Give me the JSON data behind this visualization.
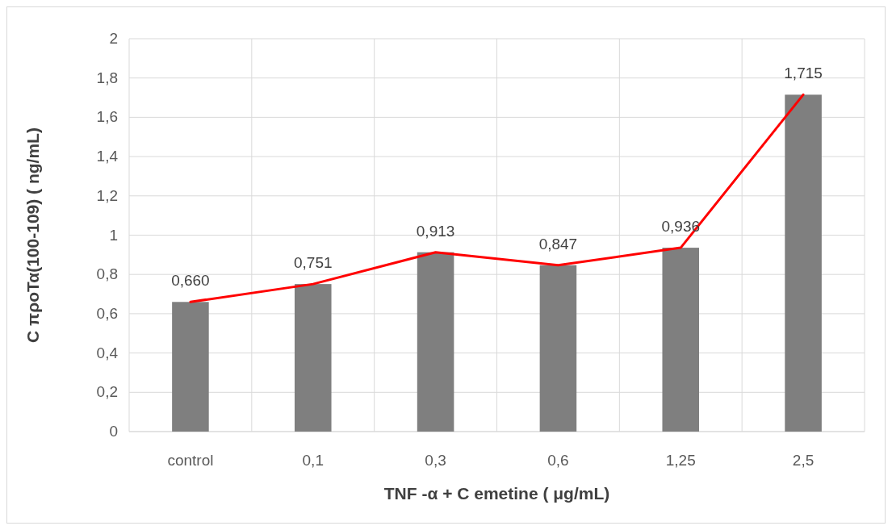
{
  "chart_data": {
    "type": "bar",
    "xlabel": "TNF -α + C emetine ( μg/mL)",
    "ylabel": "C προΤα(100-109) ( ng/mL)",
    "categories": [
      "control",
      "0,1",
      "0,3",
      "0,6",
      "1,25",
      "2,5"
    ],
    "series": [
      {
        "color": "#7f7f7f",
        "values": [
          0.66,
          0.751,
          0.913,
          0.847,
          0.936,
          1.715
        ],
        "value_labels": [
          "0,660",
          "0,751",
          "0,913",
          "0,847",
          "0,936",
          "1,715"
        ]
      },
      {
        "type": "line",
        "color": "#ff0000",
        "values": [
          0.66,
          0.751,
          0.913,
          0.847,
          0.936,
          1.715
        ]
      }
    ],
    "ylim": [
      0,
      2
    ],
    "yticks": [
      0,
      {
        "value": 0.2,
        "label": "0,2"
      },
      {
        "value": 0.4,
        "label": "0,4"
      },
      {
        "value": 0.6,
        "label": "0,6"
      },
      {
        "value": 0.8,
        "label": "0,8"
      },
      1,
      {
        "value": 1.2,
        "label": "1,2"
      },
      {
        "value": 1.4,
        "label": "1,4"
      },
      {
        "value": 1.6,
        "label": "1,6"
      },
      {
        "value": 1.8,
        "label": "1,8"
      },
      2
    ],
    "grid": true
  }
}
